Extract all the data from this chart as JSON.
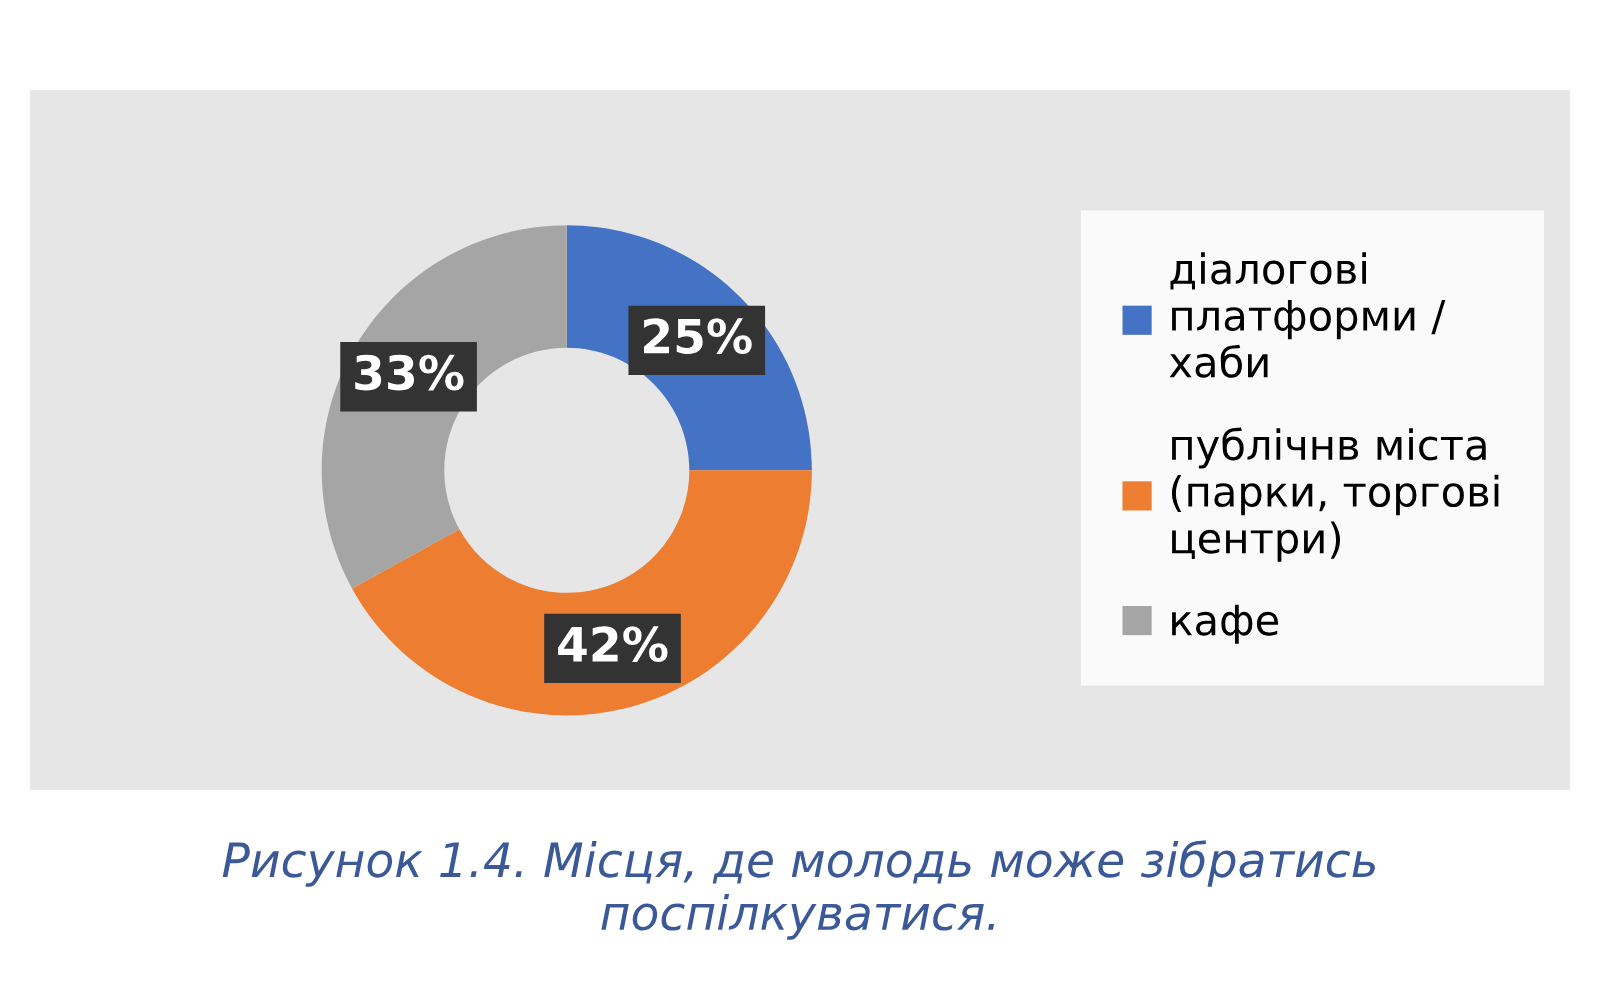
{
  "chart_data": {
    "type": "donut",
    "categories": [
      "діалогові\nплатформи /\nхаби",
      "публічнв міста\n(парки, торгові\nцентри)",
      "кафе"
    ],
    "values": [
      25,
      42,
      33
    ],
    "colors": [
      "#4472c4",
      "#ed7d31",
      "#a5a5a5"
    ],
    "value_labels": [
      "25%",
      "42%",
      "33%"
    ],
    "legend": "right",
    "annotations": [
      "Рисунок 1.4. Місця, де молодь може зібратись\nпоспілкуватися."
    ]
  }
}
